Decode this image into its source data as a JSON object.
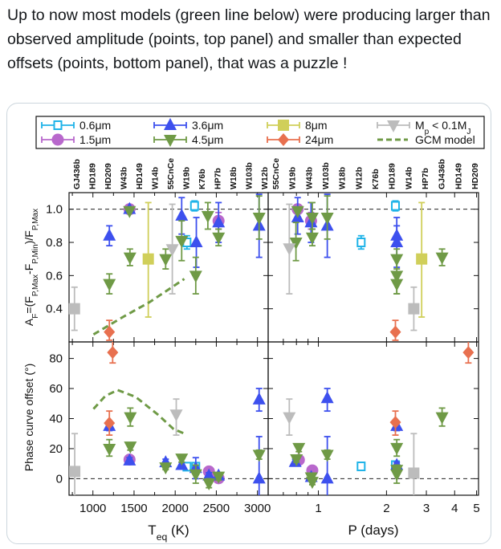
{
  "tweet": {
    "text": "Up to now most models (green line below) were producing larger than observed amplitude (points, top panel) and smaller than expected offsets (points, bottom panel),  that was a puzzle !"
  },
  "chart_data": {
    "type": "scatter",
    "panels": {
      "top_left": {
        "xlim": [
          710,
          3130
        ],
        "ylim": [
          0.2,
          1.1
        ]
      },
      "top_right": {
        "xlim": [
          0.6,
          5.1
        ],
        "ylim": [
          0.2,
          1.1
        ],
        "xscale": "log"
      },
      "bottom_left": {
        "xlim": [
          710,
          3130
        ],
        "ylim": [
          -11,
          91
        ]
      },
      "bottom_right": {
        "xlim": [
          0.6,
          5.1
        ],
        "ylim": [
          -11,
          91
        ],
        "xscale": "log"
      }
    },
    "xlabel_left": [
      {
        "t": "T"
      },
      {
        "t": "eq",
        "sub": true
      },
      {
        "t": " (K)"
      }
    ],
    "xlabel_right": [
      {
        "t": "P (days)"
      }
    ],
    "ylabel_top": [
      {
        "t": "A"
      },
      {
        "t": "F",
        "sub": true
      },
      {
        "t": "=(F"
      },
      {
        "t": "P,Max",
        "sub": true
      },
      {
        "t": "-F"
      },
      {
        "t": "P,Min",
        "sub": true
      },
      {
        "t": ")/F"
      },
      {
        "t": "P,Max",
        "sub": true
      }
    ],
    "ylabel_bottom": [
      {
        "t": "Phase curve offset (°)"
      }
    ],
    "xticks_left": [
      "1000",
      "1500",
      "2000",
      "2500",
      "3000"
    ],
    "xticks_right": [
      "1",
      "2",
      "3",
      "4",
      "5"
    ],
    "yticks_top": [
      "0.4",
      "0.6",
      "0.8",
      "1.0"
    ],
    "yticks_bottom": [
      "0",
      "20",
      "40",
      "60",
      "80"
    ],
    "reference_lines": {
      "top": 1.0,
      "bottom": 0
    },
    "planet_labels_left": [
      [
        "GJ436b",
        760
      ],
      [
        "HD189",
        1200
      ],
      [
        "HD209",
        1450
      ],
      [
        "W43b",
        1450
      ],
      [
        "HD149",
        1680
      ],
      [
        "W14b",
        1880
      ],
      [
        "55CnCe",
        2000
      ],
      [
        "W19b",
        2100
      ],
      [
        "K76b",
        2160
      ],
      [
        "HP7b",
        2250
      ],
      [
        "W18b",
        2400
      ],
      [
        "W103b",
        2520
      ],
      [
        "W12b",
        2990
      ]
    ],
    "planet_labels_right": [
      [
        "55CnCe",
        0.74
      ],
      [
        "W19b",
        0.79
      ],
      [
        "W43b",
        0.82
      ],
      [
        "W103b",
        0.93
      ],
      [
        "W18b",
        0.95
      ],
      [
        "W12b",
        1.09
      ],
      [
        "K76b",
        1.545
      ],
      [
        "W14b",
        2.24
      ],
      [
        "HD189",
        2.2
      ],
      [
        "HP7b",
        2.3
      ],
      [
        "GJ436b",
        2.64
      ],
      [
        "HD149",
        2.88
      ],
      [
        "HD209",
        3.52
      ]
    ],
    "legend": {
      "placement": "top",
      "items": [
        {
          "series": 0,
          "label": [
            {
              "t": "0.6μm"
            }
          ]
        },
        {
          "series": 2,
          "label": [
            {
              "t": "3.6μm"
            }
          ]
        },
        {
          "series": 4,
          "label": [
            {
              "t": "8μm"
            }
          ]
        },
        {
          "series": 6,
          "label": [
            {
              "t": "M"
            },
            {
              "t": "p",
              "sub": true
            },
            {
              "t": " < 0.1M"
            },
            {
              "t": "J",
              "sub": true
            }
          ]
        },
        {
          "series": 1,
          "label": [
            {
              "t": "1.5μm"
            }
          ]
        },
        {
          "series": 3,
          "label": [
            {
              "t": "4.5μm"
            }
          ]
        },
        {
          "series": 5,
          "label": [
            {
              "t": "24μm"
            }
          ]
        },
        {
          "series": "model",
          "label": [
            {
              "t": "GCM model"
            }
          ]
        }
      ]
    },
    "series": [
      {
        "name": "0.6μm",
        "marker": "open-square",
        "color": "#1fb3e8",
        "top_left": [
          [
            2143,
            0.8,
            0.76,
            0.84
          ],
          [
            2235,
            1.02,
            0.99,
            1.05
          ]
        ],
        "bottom_left": [
          [
            2143,
            8,
            6,
            10
          ],
          [
            2250,
            8,
            6,
            10
          ]
        ],
        "top_right": [
          [
            1.545,
            0.8,
            0.76,
            0.84
          ],
          [
            2.19,
            1.02,
            0.99,
            1.05
          ]
        ],
        "bottom_right": [
          [
            1.545,
            8.2,
            6.5,
            10
          ],
          [
            2.19,
            9,
            7,
            11
          ]
        ]
      },
      {
        "name": "1.5μm",
        "marker": "circle",
        "color": "#b868cc",
        "top_left": [
          [
            1445,
            1.0,
            1.0,
            1.0
          ],
          [
            2527,
            0.93,
            0.88,
            0.98
          ]
        ],
        "bottom_left": [
          [
            1445,
            12.7,
            12.7,
            12.7
          ],
          [
            2410,
            4.8,
            4.8,
            4.8
          ],
          [
            2527,
            0.3,
            0.3,
            0.3
          ]
        ],
        "top_right": [
          [
            0.81,
            1.0,
            1.0,
            1.0
          ],
          [
            0.928,
            0.93,
            0.88,
            0.98
          ]
        ],
        "bottom_right": [
          [
            0.82,
            12.5,
            12.5,
            12.5
          ],
          [
            0.94,
            5.5,
            5.5,
            5.5
          ]
        ]
      },
      {
        "name": "3.6μm",
        "marker": "triangle-up",
        "color": "#3d50ee",
        "top_left": [
          [
            1200,
            0.84,
            0.78,
            0.9
          ],
          [
            1445,
            1.0,
            1.0,
            1.0
          ],
          [
            2079,
            0.96,
            0.85,
            1.07
          ],
          [
            2257,
            0.8,
            0.65,
            0.95
          ],
          [
            2527,
            0.92,
            0.8,
            1.04
          ],
          [
            3020,
            0.9,
            0.71,
            1.09
          ]
        ],
        "bottom_left": [
          [
            1200,
            35,
            32,
            38
          ],
          [
            1445,
            12,
            10,
            14
          ],
          [
            1884,
            10.8,
            9,
            13
          ],
          [
            2079,
            9,
            7,
            11
          ],
          [
            2250,
            7,
            0,
            14
          ],
          [
            2410,
            2,
            0,
            4
          ],
          [
            2527,
            2,
            0,
            4
          ],
          [
            3020,
            52.6,
            45,
            60
          ],
          [
            3020,
            0,
            -11,
            28
          ]
        ],
        "top_right": [
          [
            0.81,
            0.95,
            0.85,
            1.07
          ],
          [
            0.928,
            0.92,
            0.8,
            1.04
          ],
          [
            1.095,
            0.9,
            0.71,
            1.09
          ],
          [
            2.22,
            0.84,
            0.78,
            0.9
          ],
          [
            2.22,
            0.8,
            0.65,
            0.95
          ]
        ],
        "bottom_right": [
          [
            0.79,
            11,
            9,
            13
          ],
          [
            0.93,
            1,
            0,
            3
          ],
          [
            1.095,
            53.5,
            45,
            60
          ],
          [
            1.095,
            0,
            -11,
            28
          ],
          [
            2.22,
            35,
            32,
            38
          ],
          [
            2.22,
            9,
            7,
            11
          ]
        ]
      },
      {
        "name": "4.5μm",
        "marker": "triangle-down",
        "color": "#6f9a46",
        "top_left": [
          [
            1200,
            0.55,
            0.49,
            0.61
          ],
          [
            1445,
            0.99,
            0.99,
            0.99
          ],
          [
            1450,
            0.71,
            0.66,
            0.76
          ],
          [
            1884,
            0.7,
            0.64,
            0.76
          ],
          [
            2079,
            0.81,
            0.69,
            0.93
          ],
          [
            2250,
            0.6,
            0.49,
            0.71
          ],
          [
            2397,
            0.96,
            0.88,
            1.04
          ],
          [
            2527,
            0.83,
            0.78,
            0.88
          ],
          [
            3020,
            0.95,
            0.82,
            1.08
          ]
        ],
        "bottom_left": [
          [
            1200,
            20,
            15,
            26
          ],
          [
            1455,
            41,
            35,
            47
          ],
          [
            1455,
            21.5,
            19,
            24
          ],
          [
            1884,
            7.6,
            6,
            9
          ],
          [
            2079,
            13.5,
            11,
            16
          ],
          [
            2250,
            3,
            -3,
            9
          ],
          [
            2410,
            -3,
            -6,
            0
          ],
          [
            2527,
            1.5,
            -1,
            4
          ],
          [
            3020,
            16,
            13,
            19
          ]
        ],
        "top_right": [
          [
            0.81,
            0.99,
            0.99,
            0.99
          ],
          [
            0.796,
            0.8,
            0.69,
            0.92
          ],
          [
            0.94,
            0.95,
            0.88,
            1.04
          ],
          [
            0.94,
            0.83,
            0.78,
            0.88
          ],
          [
            1.095,
            0.95,
            0.82,
            1.08
          ],
          [
            2.22,
            0.7,
            0.64,
            0.76
          ],
          [
            2.22,
            0.6,
            0.49,
            0.71
          ],
          [
            2.22,
            0.55,
            0.49,
            0.61
          ],
          [
            3.52,
            0.71,
            0.66,
            0.76
          ]
        ],
        "bottom_right": [
          [
            0.82,
            20.6,
            18,
            23
          ],
          [
            0.8,
            13,
            11,
            15
          ],
          [
            0.93,
            1,
            -1,
            3
          ],
          [
            0.94,
            -2,
            -4,
            0
          ],
          [
            1.095,
            16,
            13,
            19
          ],
          [
            2.22,
            20.6,
            15,
            26
          ],
          [
            2.22,
            6,
            3,
            9
          ],
          [
            2.22,
            3,
            -3,
            9
          ],
          [
            3.52,
            41,
            35,
            47
          ]
        ]
      },
      {
        "name": "8μm",
        "marker": "square",
        "color": "#d0cf5a",
        "top_left": [
          [
            1673,
            0.7,
            0.35,
            1.04
          ]
        ],
        "top_right": [
          [
            2.86,
            0.7,
            0.35,
            1.04
          ]
        ]
      },
      {
        "name": "24μm",
        "marker": "diamond",
        "color": "#e8704f",
        "top_left": [
          [
            1200,
            0.26,
            0.21,
            0.33
          ]
        ],
        "bottom_left": [
          [
            1240,
            84,
            77,
            91
          ],
          [
            1200,
            37,
            29,
            45
          ]
        ],
        "top_right": [
          [
            2.19,
            0.26,
            0.21,
            0.33
          ]
        ],
        "bottom_right": [
          [
            4.6,
            84,
            77,
            91
          ],
          [
            2.19,
            37.5,
            29,
            45
          ]
        ]
      },
      {
        "name": "Mp < 0.1MJ",
        "marker": "triangle-down",
        "color": "#bcbcbc",
        "top_left": [
          [
            1965,
            0.76,
            0.49,
            1.03
          ]
        ],
        "bottom_left": [
          [
            2013,
            42.8,
            29,
            53
          ]
        ],
        "top_right": [
          [
            0.744,
            0.765,
            0.49,
            1.03
          ]
        ],
        "bottom_right": [
          [
            0.744,
            41,
            29,
            53
          ]
        ]
      },
      {
        "marker": "square",
        "color": "#bcbcbc",
        "top_left": [
          [
            776,
            0.4,
            0.27,
            0.53
          ]
        ],
        "bottom_left": [
          [
            779,
            4.8,
            -11,
            30
          ]
        ],
        "top_right": [
          [
            2.64,
            0.4,
            0.27,
            0.53
          ]
        ],
        "bottom_right": [
          [
            2.64,
            3.7,
            -11,
            30
          ]
        ]
      }
    ],
    "model": {
      "name": "GCM model",
      "color": "#6f9a46",
      "style": "dashed",
      "top_left": [
        [
          1007,
          0.245
        ],
        [
          1364,
          0.35
        ],
        [
          1689,
          0.44
        ],
        [
          1946,
          0.525
        ],
        [
          2111,
          0.58
        ]
      ],
      "bottom_left": [
        [
          1007,
          46.4
        ],
        [
          1150,
          55
        ],
        [
          1300,
          59
        ],
        [
          1520,
          54.4
        ],
        [
          1786,
          42.8
        ],
        [
          1981,
          33
        ],
        [
          2111,
          30
        ]
      ]
    }
  }
}
